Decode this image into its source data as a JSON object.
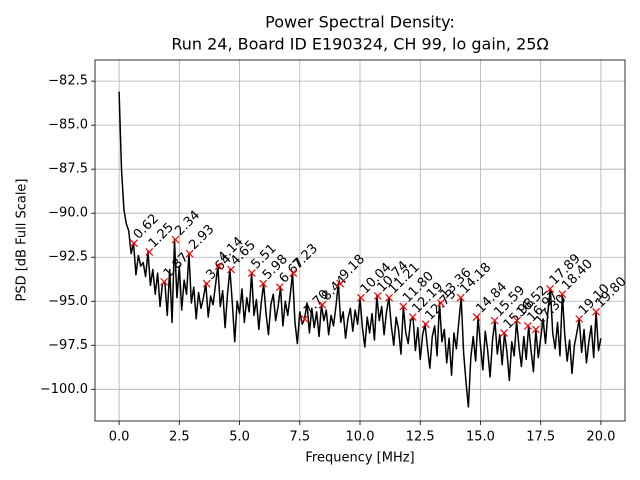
{
  "chart_data": {
    "type": "line",
    "title": [
      "Power Spectral Density:",
      "Run 24, Board ID E190324, CH 99, lo gain, 25Ω"
    ],
    "xlabel": "Frequency [MHz]",
    "ylabel": "PSD [dB Full Scale]",
    "xlim": [
      -1,
      21
    ],
    "ylim": [
      -101.8,
      -81.3
    ],
    "xticks": [
      {
        "value": 0,
        "label": "0.0"
      },
      2.5,
      {
        "value": 5,
        "label": "5.0"
      },
      7.5,
      {
        "value": 10,
        "label": "10.0"
      },
      12.5,
      {
        "value": 15,
        "label": "15.0"
      },
      17.5,
      {
        "value": 20,
        "label": "20.0"
      }
    ],
    "yticks": [
      {
        "value": -100,
        "label": "−100.0"
      },
      {
        "value": -97.5,
        "label": "−97.5"
      },
      {
        "value": -95,
        "label": "−95.0"
      },
      {
        "value": -92.5,
        "label": "−92.5"
      },
      {
        "value": -90,
        "label": "−90.0"
      },
      {
        "value": -87.5,
        "label": "−87.5"
      },
      {
        "value": -85,
        "label": "−85.0"
      },
      {
        "value": -82.5,
        "label": "−82.5"
      }
    ],
    "grid": true,
    "series": [
      {
        "color": "#000000",
        "x": [
          0.0,
          0.1,
          0.2,
          0.3,
          0.4,
          0.5,
          0.6,
          0.7,
          0.8,
          0.9,
          1.0,
          1.1,
          1.2,
          1.3,
          1.4,
          1.5,
          1.6,
          1.7,
          1.8,
          1.9,
          2.0,
          2.1,
          2.2,
          2.3,
          2.4,
          2.5,
          2.6,
          2.7,
          2.8,
          2.9,
          3.0,
          3.1,
          3.2,
          3.3,
          3.4,
          3.5,
          3.6,
          3.7,
          3.8,
          3.9,
          4.0,
          4.1,
          4.2,
          4.3,
          4.4,
          4.5,
          4.6,
          4.7,
          4.8,
          4.9,
          5.0,
          5.1,
          5.2,
          5.3,
          5.4,
          5.5,
          5.6,
          5.7,
          5.8,
          5.9,
          6.0,
          6.1,
          6.2,
          6.3,
          6.4,
          6.5,
          6.6,
          6.7,
          6.8,
          6.9,
          7.0,
          7.1,
          7.2,
          7.3,
          7.4,
          7.5,
          7.6,
          7.7,
          7.8,
          7.9,
          8.0,
          8.1,
          8.2,
          8.3,
          8.4,
          8.5,
          8.6,
          8.7,
          8.8,
          8.9,
          9.0,
          9.1,
          9.2,
          9.3,
          9.4,
          9.5,
          9.6,
          9.7,
          9.8,
          9.9,
          10.0,
          10.1,
          10.2,
          10.3,
          10.4,
          10.5,
          10.6,
          10.7,
          10.8,
          10.9,
          11.0,
          11.1,
          11.2,
          11.3,
          11.4,
          11.5,
          11.6,
          11.7,
          11.8,
          11.9,
          12.0,
          12.1,
          12.2,
          12.3,
          12.4,
          12.5,
          12.6,
          12.7,
          12.8,
          12.9,
          13.0,
          13.1,
          13.2,
          13.3,
          13.4,
          13.5,
          13.6,
          13.7,
          13.8,
          13.9,
          14.0,
          14.1,
          14.2,
          14.3,
          14.4,
          14.5,
          14.6,
          14.7,
          14.8,
          14.9,
          15.0,
          15.1,
          15.2,
          15.3,
          15.4,
          15.5,
          15.6,
          15.7,
          15.8,
          15.9,
          16.0,
          16.1,
          16.2,
          16.3,
          16.4,
          16.5,
          16.6,
          16.7,
          16.8,
          16.9,
          17.0,
          17.1,
          17.2,
          17.3,
          17.4,
          17.5,
          17.6,
          17.7,
          17.8,
          17.9,
          18.0,
          18.1,
          18.2,
          18.3,
          18.4,
          18.5,
          18.6,
          18.7,
          18.8,
          18.9,
          19.0,
          19.1,
          19.2,
          19.3,
          19.4,
          19.5,
          19.6,
          19.7,
          19.8,
          19.9,
          20.0
        ],
        "values": [
          -83.1,
          -87.5,
          -89.8,
          -90.6,
          -91.0,
          -92.3,
          -91.7,
          -93.5,
          -92.4,
          -93.0,
          -92.8,
          -93.6,
          -92.2,
          -94.1,
          -93.2,
          -94.6,
          -93.4,
          -95.3,
          -94.0,
          -93.9,
          -95.8,
          -93.2,
          -96.2,
          -91.5,
          -94.8,
          -93.0,
          -95.5,
          -93.8,
          -94.6,
          -92.3,
          -95.1,
          -94.2,
          -96.0,
          -94.5,
          -95.4,
          -94.8,
          -94.0,
          -95.9,
          -94.7,
          -95.2,
          -94.1,
          -93.0,
          -95.3,
          -94.4,
          -96.5,
          -94.6,
          -93.2,
          -95.1,
          -97.3,
          -95.0,
          -95.7,
          -94.3,
          -96.2,
          -94.8,
          -95.6,
          -93.4,
          -95.8,
          -94.9,
          -96.6,
          -95.1,
          -94.0,
          -95.7,
          -96.9,
          -95.2,
          -94.6,
          -96.1,
          -95.3,
          -94.2,
          -96.4,
          -95.0,
          -95.8,
          -94.7,
          -93.4,
          -96.2,
          -97.4,
          -95.6,
          -96.3,
          -96.0,
          -95.1,
          -96.8,
          -95.4,
          -96.5,
          -95.6,
          -97.0,
          -95.2,
          -96.1,
          -95.5,
          -96.9,
          -95.8,
          -96.4,
          -95.3,
          -94.0,
          -96.2,
          -95.6,
          -97.1,
          -96.0,
          -95.4,
          -96.7,
          -95.5,
          -96.3,
          -94.8,
          -96.5,
          -97.6,
          -95.9,
          -96.8,
          -95.7,
          -97.2,
          -94.7,
          -96.1,
          -95.3,
          -96.9,
          -95.6,
          -94.8,
          -96.4,
          -97.5,
          -95.9,
          -96.6,
          -98.0,
          -95.3,
          -96.8,
          -97.4,
          -96.1,
          -95.9,
          -97.8,
          -96.5,
          -98.3,
          -96.9,
          -96.3,
          -97.6,
          -98.8,
          -97.0,
          -96.4,
          -98.1,
          -95.1,
          -97.3,
          -96.6,
          -98.5,
          -97.1,
          -99.2,
          -96.8,
          -97.7,
          -96.2,
          -94.8,
          -97.9,
          -99.6,
          -101.0,
          -98.2,
          -97.0,
          -98.4,
          -95.9,
          -97.5,
          -98.9,
          -96.7,
          -97.8,
          -99.3,
          -97.2,
          -96.1,
          -98.0,
          -96.9,
          -98.6,
          -96.8,
          -97.9,
          -99.5,
          -97.3,
          -98.1,
          -96.1,
          -97.6,
          -98.7,
          -97.0,
          -98.3,
          -96.4,
          -97.8,
          -99.0,
          -96.6,
          -98.2,
          -97.1,
          -96.0,
          -97.4,
          -95.6,
          -94.3,
          -96.8,
          -97.7,
          -96.2,
          -98.1,
          -94.6,
          -96.9,
          -98.4,
          -97.2,
          -99.1,
          -97.5,
          -96.8,
          -96.0,
          -97.9,
          -96.6,
          -98.5,
          -97.3,
          -96.4,
          -98.2,
          -95.6,
          -97.8,
          -97.1
        ]
      }
    ],
    "peaks": {
      "color": "#ff0000",
      "x": [
        0.62,
        1.25,
        1.87,
        2.34,
        2.93,
        3.64,
        4.14,
        4.65,
        5.51,
        5.98,
        6.67,
        7.23,
        7.7,
        8.44,
        9.18,
        10.04,
        10.74,
        11.21,
        11.8,
        12.19,
        12.73,
        13.36,
        14.18,
        14.84,
        15.59,
        15.98,
        16.52,
        16.97,
        17.3,
        17.89,
        18.4,
        19.1,
        19.8
      ],
      "values": [
        -91.7,
        -92.2,
        -93.9,
        -91.5,
        -92.3,
        -94.0,
        -93.0,
        -93.2,
        -93.4,
        -94.0,
        -94.2,
        -93.4,
        -96.0,
        -95.2,
        -94.0,
        -94.8,
        -94.7,
        -94.8,
        -95.3,
        -95.9,
        -96.3,
        -95.1,
        -94.8,
        -95.9,
        -96.1,
        -96.8,
        -96.1,
        -96.4,
        -96.6,
        -94.3,
        -94.6,
        -96.0,
        -95.6
      ],
      "labels": [
        "0.62",
        "1.25",
        "1.87",
        "2.34",
        "2.93",
        "3.64",
        "4.14",
        "4.65",
        "5.51",
        "5.98",
        "6.67",
        "7.23",
        "7.70",
        "8.44",
        "9.18",
        "10.04",
        "10.74",
        "11.21",
        "11.80",
        "12.19",
        "12.73",
        "13.36",
        "14.18",
        "14.84",
        "15.59",
        "15.98",
        "16.52",
        "16.97",
        "17.30",
        "17.89",
        "18.40",
        "19.10",
        "19.80"
      ]
    }
  }
}
